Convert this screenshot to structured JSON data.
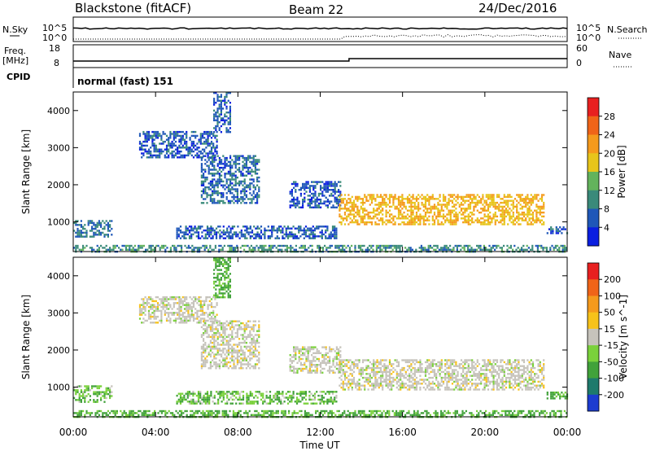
{
  "header": {
    "station": "Blackstone (fitACF)",
    "beam": "Beam 22",
    "date": "24/Dec/2016"
  },
  "status_panels": {
    "nsky_label": "N.Sky",
    "nsearch_label": "N.Search",
    "nsky_ticks": [
      "10^5",
      "10^0"
    ],
    "nsearch_ticks": [
      "10^5",
      "10^0"
    ],
    "freq_label": "Freq.",
    "freq_unit": "[MHz]",
    "freq_ticks": [
      "18",
      "8"
    ],
    "nave_label": "Nave",
    "nave_ticks": [
      "60",
      "0"
    ],
    "cpid_label": "CPID",
    "cpid_value": "normal (fast) 151"
  },
  "chart_data": [
    {
      "type": "heatmap",
      "panel": "power",
      "ylabel": "Slant Range [km]",
      "yticks": [
        "1000",
        "2000",
        "3000",
        "4000"
      ],
      "ylim": [
        200,
        4500
      ],
      "xlim": [
        0,
        24
      ],
      "colorbar_label": "Power [dB]",
      "colorbar_ticks": [
        "4",
        "8",
        "12",
        "16",
        "20",
        "24",
        "28"
      ],
      "colorbar_colors": [
        "#0a1ee0",
        "#1f57b8",
        "#3a8a7a",
        "#63b35c",
        "#e7c51b",
        "#f59a1c",
        "#f06418",
        "#e82020"
      ],
      "regions": [
        {
          "t": [
            0.0,
            1.9
          ],
          "r": [
            600,
            1050
          ],
          "level": 8
        },
        {
          "t": [
            3.2,
            7.0
          ],
          "r": [
            2750,
            3450
          ],
          "level": 6
        },
        {
          "t": [
            6.2,
            9.0
          ],
          "r": [
            1500,
            2800
          ],
          "level": 7
        },
        {
          "t": [
            6.8,
            7.6
          ],
          "r": [
            3400,
            4500
          ],
          "level": 6
        },
        {
          "t": [
            5.0,
            12.8
          ],
          "r": [
            580,
            900
          ],
          "level": 6
        },
        {
          "t": [
            10.5,
            13.0
          ],
          "r": [
            1400,
            2100
          ],
          "level": 6
        },
        {
          "t": [
            12.9,
            22.9
          ],
          "r": [
            950,
            1750
          ],
          "level": 20
        },
        {
          "t": [
            23.0,
            24.0
          ],
          "r": [
            680,
            880
          ],
          "level": 6
        },
        {
          "t": [
            0.0,
            24.0
          ],
          "r": [
            200,
            380
          ],
          "level": 10
        }
      ]
    },
    {
      "type": "heatmap",
      "panel": "velocity",
      "ylabel": "Slant Range [km]",
      "xlabel": "Time UT",
      "xticks": [
        "00:00",
        "04:00",
        "08:00",
        "12:00",
        "16:00",
        "20:00",
        "00:00"
      ],
      "xlim": [
        0,
        24
      ],
      "yticks": [
        "1000",
        "2000",
        "3000",
        "4000"
      ],
      "ylim": [
        200,
        4500
      ],
      "colorbar_label": "Velocity [m s^-1]",
      "colorbar_ticks": [
        "200",
        "100",
        "50",
        "15",
        "-15",
        "-50",
        "-100",
        "-200"
      ],
      "colorbar_colors": [
        "#1c3cd0",
        "#1e7a6c",
        "#41a23a",
        "#7ad13b",
        "#c6c3bb",
        "#f7c21a",
        "#f59a1c",
        "#f06418",
        "#e82020"
      ],
      "regions": [
        {
          "t": [
            0.0,
            1.9
          ],
          "r": [
            600,
            1050
          ],
          "velocity": 30
        },
        {
          "t": [
            3.2,
            7.0
          ],
          "r": [
            2750,
            3450
          ],
          "velocity": 0
        },
        {
          "t": [
            6.2,
            9.0
          ],
          "r": [
            1500,
            2800
          ],
          "velocity": 0
        },
        {
          "t": [
            6.8,
            7.6
          ],
          "r": [
            3400,
            4500
          ],
          "velocity": 40
        },
        {
          "t": [
            5.0,
            12.8
          ],
          "r": [
            580,
            900
          ],
          "velocity": 30
        },
        {
          "t": [
            10.5,
            13.0
          ],
          "r": [
            1400,
            2100
          ],
          "velocity": 0
        },
        {
          "t": [
            12.9,
            22.9
          ],
          "r": [
            950,
            1750
          ],
          "velocity": 0
        },
        {
          "t": [
            23.0,
            24.0
          ],
          "r": [
            680,
            880
          ],
          "velocity": 40
        },
        {
          "t": [
            0.0,
            24.0
          ],
          "r": [
            200,
            380
          ],
          "velocity": 40
        }
      ]
    }
  ]
}
